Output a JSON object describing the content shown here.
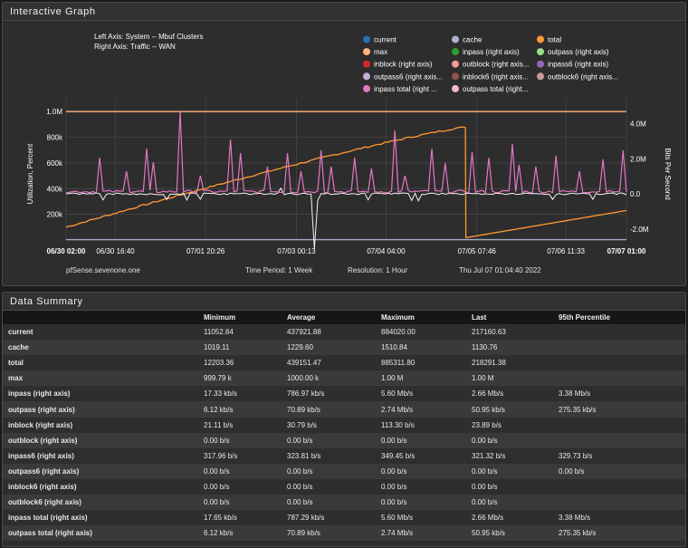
{
  "graph_panel": {
    "title": "Interactive Graph"
  },
  "summary_panel": {
    "title": "Data Summary"
  },
  "chart_data": {
    "type": "line",
    "subtitle_left": "Left Axis: System -- Mbuf Clusters",
    "subtitle_right": "Right Axis: Traffic -- WAN",
    "ylabel": "Utilization, Percent",
    "y2label": "Bits Per Second",
    "y_ticks": [
      "200k",
      "400k",
      "600k",
      "800k",
      "1.0M"
    ],
    "y2_ticks": [
      "-2.0M",
      "0.0",
      "2.0M",
      "4.0M"
    ],
    "x_ticks": [
      "06/30 02:00",
      "06/30 16:40",
      "07/01 20:26",
      "07/03 00:13",
      "07/04 04:00",
      "07/05 07:46",
      "07/06 11:33",
      "07/07 01:00"
    ],
    "legend": [
      {
        "label": "current",
        "color": "#2c6fbb"
      },
      {
        "label": "cache",
        "color": "#aab4cc"
      },
      {
        "label": "total",
        "color": "#ff9933"
      },
      {
        "label": "max",
        "color": "#ffb380"
      },
      {
        "label": "inpass (right axis)",
        "color": "#2ca02c"
      },
      {
        "label": "outpass (right axis)",
        "color": "#98df8a"
      },
      {
        "label": "inblock (right axis)",
        "color": "#d62728"
      },
      {
        "label": "outblock (right axis...",
        "color": "#ff9896"
      },
      {
        "label": "inpass6 (right axis)",
        "color": "#9467bd"
      },
      {
        "label": "outpass6 (right axis...",
        "color": "#c5b0d5"
      },
      {
        "label": "inblock6 (right axis...",
        "color": "#8c564b"
      },
      {
        "label": "outblock6 (right axis...",
        "color": "#c49c94"
      },
      {
        "label": "inpass total (right ...",
        "color": "#e377c2"
      },
      {
        "label": "outpass total (right...",
        "color": "#f7b6d2"
      }
    ],
    "footer": {
      "host": "pfSense.sevenone.one",
      "period": "Time Period: 1 Week",
      "resolution": "Resolution: 1 Hour",
      "timestamp": "Thu Jul 07 01:04:40 2022"
    },
    "series_max_left": 1000000,
    "series_total_start": 100000,
    "series_total_peak": 880000,
    "series_total_after_drop": 130000,
    "series_total_end": 230000
  },
  "summary": {
    "headers": [
      "",
      "Minimum",
      "Average",
      "Maximum",
      "Last",
      "95th Percentile"
    ],
    "rows": [
      {
        "name": "current",
        "min": "11052.84",
        "avg": "437921.88",
        "max": "884020.00",
        "last": "217160.63",
        "p95": ""
      },
      {
        "name": "cache",
        "min": "1019.11",
        "avg": "1229.60",
        "max": "1510.84",
        "last": "1130.76",
        "p95": ""
      },
      {
        "name": "total",
        "min": "12203.36",
        "avg": "439151.47",
        "max": "885311.80",
        "last": "218291.38",
        "p95": ""
      },
      {
        "name": "max",
        "min": "999.79 k",
        "avg": "1000.00 k",
        "max": "1.00 M",
        "last": "1.00 M",
        "p95": ""
      },
      {
        "name": "inpass (right axis)",
        "min": "17.33 kb/s",
        "avg": "786.97 kb/s",
        "max": "5.60 Mb/s",
        "last": "2.66 Mb/s",
        "p95": "3.38 Mb/s"
      },
      {
        "name": "outpass (right axis)",
        "min": "6.12 kb/s",
        "avg": "70.89 kb/s",
        "max": "2.74 Mb/s",
        "last": "50.95 kb/s",
        "p95": "275.35 kb/s"
      },
      {
        "name": "inblock (right axis)",
        "min": "21.11 b/s",
        "avg": "30.79 b/s",
        "max": "113.30 b/s",
        "last": "23.89 b/s",
        "p95": ""
      },
      {
        "name": "outblock (right axis)",
        "min": "0.00 b/s",
        "avg": "0.00 b/s",
        "max": "0.00 b/s",
        "last": "0.00 b/s",
        "p95": ""
      },
      {
        "name": "inpass6 (right axis)",
        "min": "317.96 b/s",
        "avg": "323.81 b/s",
        "max": "349.45 b/s",
        "last": "321.32 b/s",
        "p95": "329.73 b/s"
      },
      {
        "name": "outpass6 (right axis)",
        "min": "0.00 b/s",
        "avg": "0.00 b/s",
        "max": "0.00 b/s",
        "last": "0.00 b/s",
        "p95": "0.00 b/s"
      },
      {
        "name": "inblock6 (right axis)",
        "min": "0.00 b/s",
        "avg": "0.00 b/s",
        "max": "0.00 b/s",
        "last": "0.00 b/s",
        "p95": ""
      },
      {
        "name": "outblock6 (right axis)",
        "min": "0.00 b/s",
        "avg": "0.00 b/s",
        "max": "0.00 b/s",
        "last": "0.00 b/s",
        "p95": ""
      },
      {
        "name": "inpass total (right axis)",
        "min": "17.65 kb/s",
        "avg": "787.29 kb/s",
        "max": "5.60 Mb/s",
        "last": "2.66 Mb/s",
        "p95": "3.38 Mb/s"
      },
      {
        "name": "outpass total (right axis)",
        "min": "6.12 kb/s",
        "avg": "70.89 kb/s",
        "max": "2.74 Mb/s",
        "last": "50.95 kb/s",
        "p95": "275.35 kb/s"
      }
    ]
  }
}
